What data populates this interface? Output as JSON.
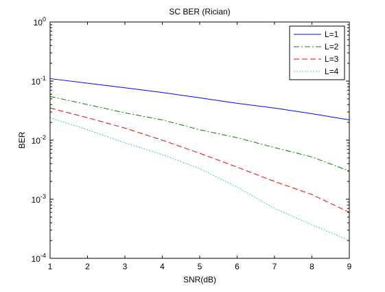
{
  "chart_data": {
    "type": "line",
    "title": "SC BER (Rician)",
    "xlabel": "SNR(dB)",
    "ylabel": "BER",
    "xlim": [
      1,
      9
    ],
    "ylim": [
      0.0001,
      1
    ],
    "yscale": "log",
    "grid": false,
    "legend_position": "top-right",
    "x_ticks": [
      {
        "value": 1,
        "label": "1"
      },
      {
        "value": 2,
        "label": "2"
      },
      {
        "value": 3,
        "label": "3"
      },
      {
        "value": 4,
        "label": "4"
      },
      {
        "value": 5,
        "label": "5"
      },
      {
        "value": 6,
        "label": "6"
      },
      {
        "value": 7,
        "label": "7"
      },
      {
        "value": 8,
        "label": "8"
      },
      {
        "value": 9,
        "label": "9"
      }
    ],
    "y_ticks": [
      {
        "value": 0.0001,
        "base": "10",
        "exp": "-4"
      },
      {
        "value": 0.001,
        "base": "10",
        "exp": "-3"
      },
      {
        "value": 0.01,
        "base": "10",
        "exp": "-2"
      },
      {
        "value": 0.1,
        "base": "10",
        "exp": "-1"
      },
      {
        "value": 1,
        "base": "10",
        "exp": "0"
      }
    ],
    "x": [
      1,
      2,
      3,
      4,
      5,
      6,
      7,
      8,
      9
    ],
    "series": [
      {
        "name": "L=1",
        "color": "#0000ff",
        "style": "solid",
        "values": [
          0.11,
          0.092,
          0.077,
          0.064,
          0.052,
          0.042,
          0.035,
          0.028,
          0.022
        ]
      },
      {
        "name": "L=2",
        "color": "#008000",
        "style": "dashdot",
        "values": [
          0.055,
          0.04,
          0.029,
          0.022,
          0.015,
          0.011,
          0.0075,
          0.0052,
          0.003
        ]
      },
      {
        "name": "L=3",
        "color": "#ff0000",
        "style": "dashed",
        "values": [
          0.035,
          0.024,
          0.016,
          0.01,
          0.006,
          0.0035,
          0.002,
          0.0012,
          0.0006
        ]
      },
      {
        "name": "L=4",
        "color": "#00bfbf",
        "style": "dotted",
        "values": [
          0.024,
          0.015,
          0.009,
          0.0057,
          0.0033,
          0.0016,
          0.0007,
          0.00037,
          0.0002
        ]
      }
    ]
  }
}
